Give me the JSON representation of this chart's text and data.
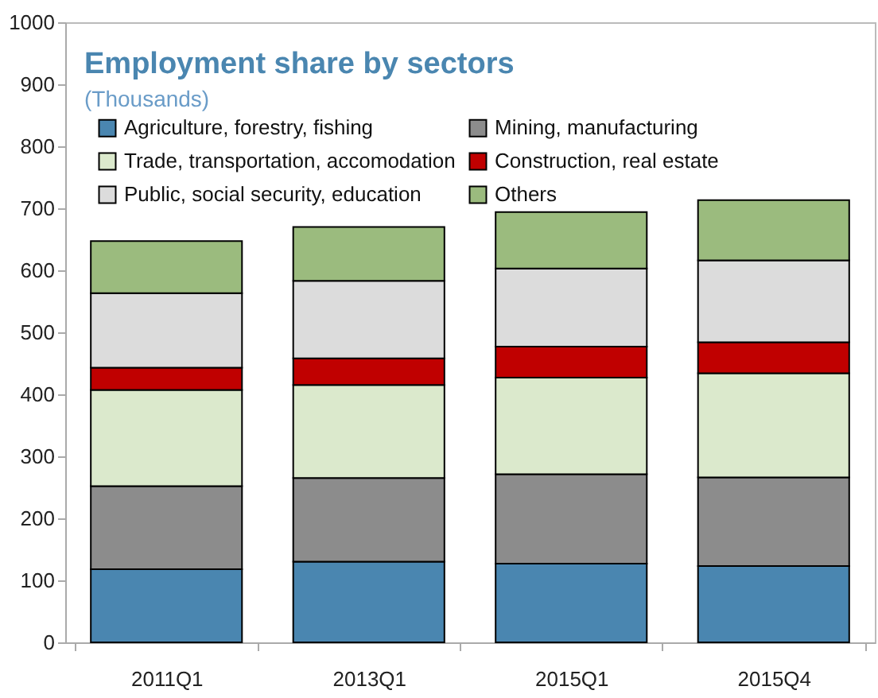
{
  "chart_data": {
    "type": "bar",
    "title": "Employment share by sectors",
    "subtitle": "(Thousands)",
    "stacked": true,
    "categories": [
      "2011Q1",
      "2013Q1",
      "2015Q1",
      "2015Q4"
    ],
    "series": [
      {
        "name": "Agriculture, forestry, fishing",
        "color": "#4a86b0",
        "values": [
          118,
          130,
          127,
          123
        ]
      },
      {
        "name": "Mining, manufacturing",
        "color": "#8c8c8c",
        "values": [
          134,
          135,
          144,
          143
        ]
      },
      {
        "name": "Trade, transportation, accomodation",
        "color": "#dbe9cc",
        "values": [
          155,
          150,
          156,
          168
        ]
      },
      {
        "name": "Construction, real estate",
        "color": "#c00000",
        "values": [
          36,
          43,
          50,
          50
        ]
      },
      {
        "name": "Public, social security, education",
        "color": "#dcdcdc",
        "values": [
          120,
          125,
          126,
          132
        ]
      },
      {
        "name": "Others",
        "color": "#9bbb7e",
        "values": [
          84,
          87,
          91,
          97
        ]
      }
    ],
    "ylim": [
      0,
      1000
    ],
    "yticks": [
      0,
      100,
      200,
      300,
      400,
      500,
      600,
      700,
      800,
      900,
      1000
    ],
    "grid": false,
    "legend": "top left"
  }
}
